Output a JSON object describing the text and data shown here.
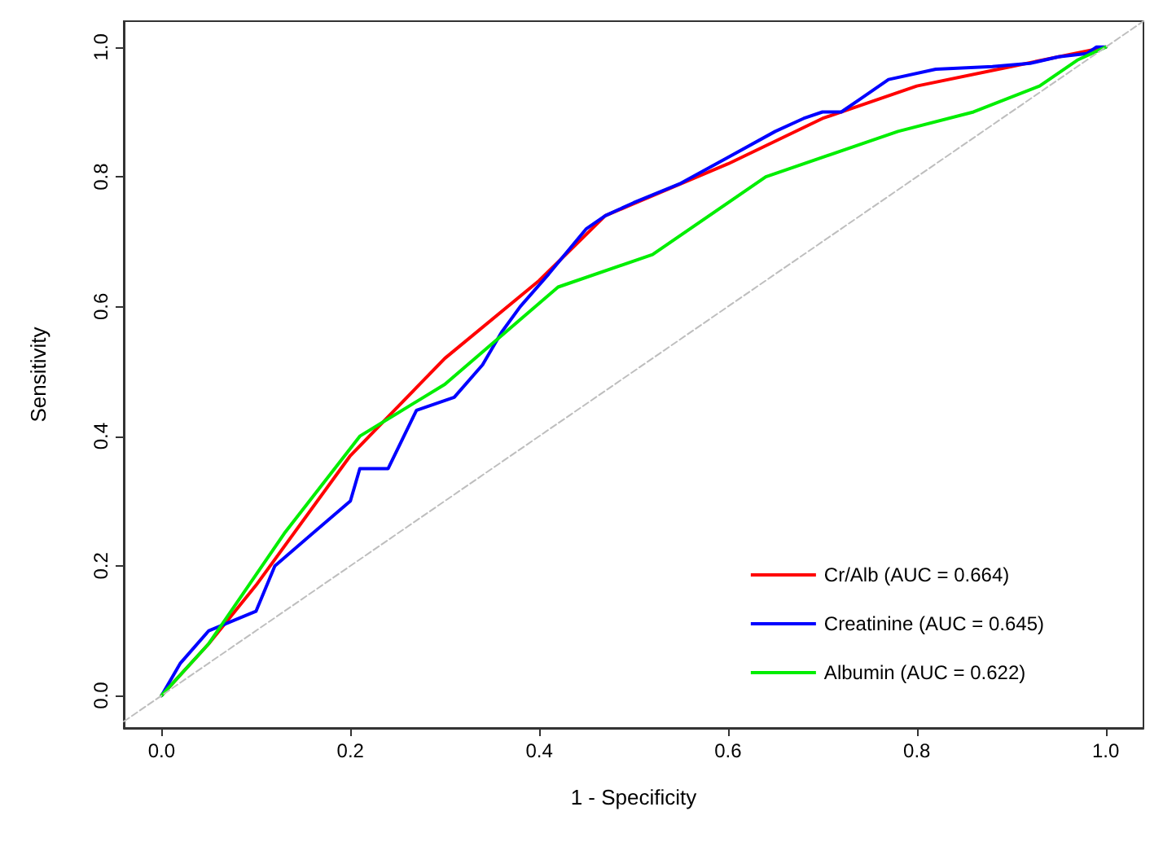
{
  "chart_data": {
    "type": "line",
    "xlabel": "1 - Specificity",
    "ylabel": "Sensitivity",
    "xlim": [
      -0.04,
      1.04
    ],
    "ylim": [
      -0.05,
      1.04
    ],
    "xticks": [
      {
        "value": 0,
        "label": "0.0"
      },
      {
        "value": 0.2,
        "label": "0.2"
      },
      {
        "value": 0.4,
        "label": "0.4"
      },
      {
        "value": 0.6,
        "label": "0.6"
      },
      {
        "value": 0.8,
        "label": "0.8"
      },
      {
        "value": 1,
        "label": "1.0"
      }
    ],
    "yticks": [
      {
        "value": 0,
        "label": "0.0"
      },
      {
        "value": 0.2,
        "label": "0.2"
      },
      {
        "value": 0.4,
        "label": "0.4"
      },
      {
        "value": 0.6,
        "label": "0.6"
      },
      {
        "value": 0.8,
        "label": "0.8"
      },
      {
        "value": 1,
        "label": "1.0"
      }
    ],
    "legend": "bottom right",
    "marker": "none",
    "series": [
      {
        "name": "Cr/Alb (AUC = 0.664)",
        "color": "#ff0000",
        "x": [
          0,
          0.05,
          0.1,
          0.2,
          0.3,
          0.4,
          0.47,
          0.6,
          0.7,
          0.8,
          0.9,
          1
        ],
        "values": [
          0,
          0.08,
          0.17,
          0.37,
          0.52,
          0.64,
          0.74,
          0.82,
          0.89,
          0.94,
          0.97,
          1
        ]
      },
      {
        "name": "Creatinine (AUC = 0.645)",
        "color": "#0000ff",
        "x": [
          0,
          0.02,
          0.05,
          0.1,
          0.12,
          0.16,
          0.2,
          0.21,
          0.24,
          0.27,
          0.31,
          0.34,
          0.36,
          0.38,
          0.41,
          0.45,
          0.47,
          0.5,
          0.55,
          0.6,
          0.65,
          0.68,
          0.7,
          0.72,
          0.74,
          0.77,
          0.82,
          0.88,
          0.92,
          0.95,
          0.98,
          0.99,
          1
        ],
        "values": [
          0,
          0.05,
          0.1,
          0.13,
          0.2,
          0.25,
          0.3,
          0.35,
          0.35,
          0.44,
          0.46,
          0.51,
          0.56,
          0.6,
          0.65,
          0.72,
          0.74,
          0.76,
          0.79,
          0.83,
          0.87,
          0.89,
          0.9,
          0.9,
          0.92,
          0.95,
          0.966,
          0.97,
          0.975,
          0.985,
          0.99,
          1,
          1
        ]
      },
      {
        "name": "Albumin (AUC = 0.622)",
        "color": "#00ee00",
        "x": [
          0,
          0.05,
          0.13,
          0.21,
          0.3,
          0.42,
          0.52,
          0.64,
          0.78,
          0.86,
          0.93,
          0.97,
          1
        ],
        "values": [
          0,
          0.08,
          0.25,
          0.4,
          0.48,
          0.63,
          0.68,
          0.8,
          0.87,
          0.9,
          0.94,
          0.98,
          1
        ]
      },
      {
        "color": "#bebebe",
        "line_style": "dashed",
        "x": [
          -0.04,
          1.04
        ],
        "values": [
          -0.04,
          1.04
        ]
      }
    ]
  }
}
